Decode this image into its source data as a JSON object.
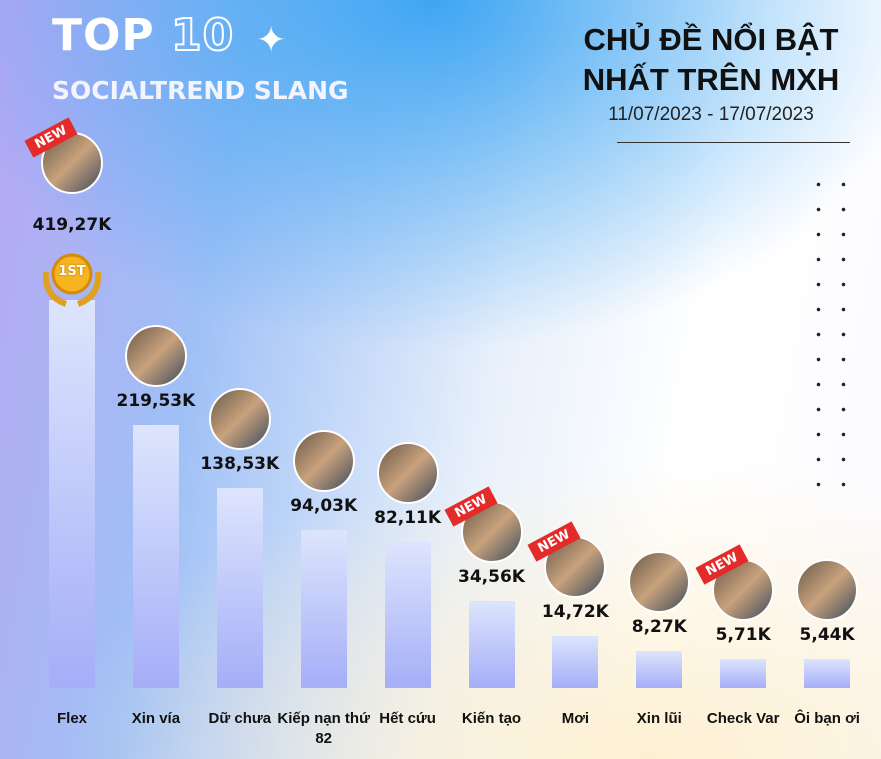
{
  "header": {
    "top": "TOP",
    "ten": "10",
    "subtitle": "SOCIALTREND SLANG",
    "title_line1": "CHỦ ĐỀ NỔI BẬT",
    "title_line2": "NHẤT TRÊN MXH",
    "dates": "11/07/2023 - 17/07/2023"
  },
  "badge_new": "NEW",
  "medal_text": "1ST",
  "chart_data": {
    "type": "bar",
    "scale": "sqrt",
    "grid": false,
    "categories": [
      "Flex",
      "Xin vía",
      "Dữ chưa",
      "Kiếp nạn thứ 82",
      "Hết cứu",
      "Kiến tạo",
      "Mơi",
      "Xin lũi",
      "Check Var",
      "Ôi bạn ơi"
    ],
    "values": [
      419270,
      219530,
      138530,
      94030,
      82110,
      34560,
      14720,
      8270,
      5710,
      5440
    ],
    "data_labels": [
      "419,27K",
      "219,53K",
      "138,53K",
      "94,03K",
      "82,11K",
      "34,56K",
      "14,72K",
      "8,27K",
      "5,71K",
      "5,44K"
    ],
    "new": [
      true,
      false,
      false,
      false,
      false,
      true,
      true,
      false,
      true,
      false
    ],
    "bar_color": "#a5aef7"
  }
}
